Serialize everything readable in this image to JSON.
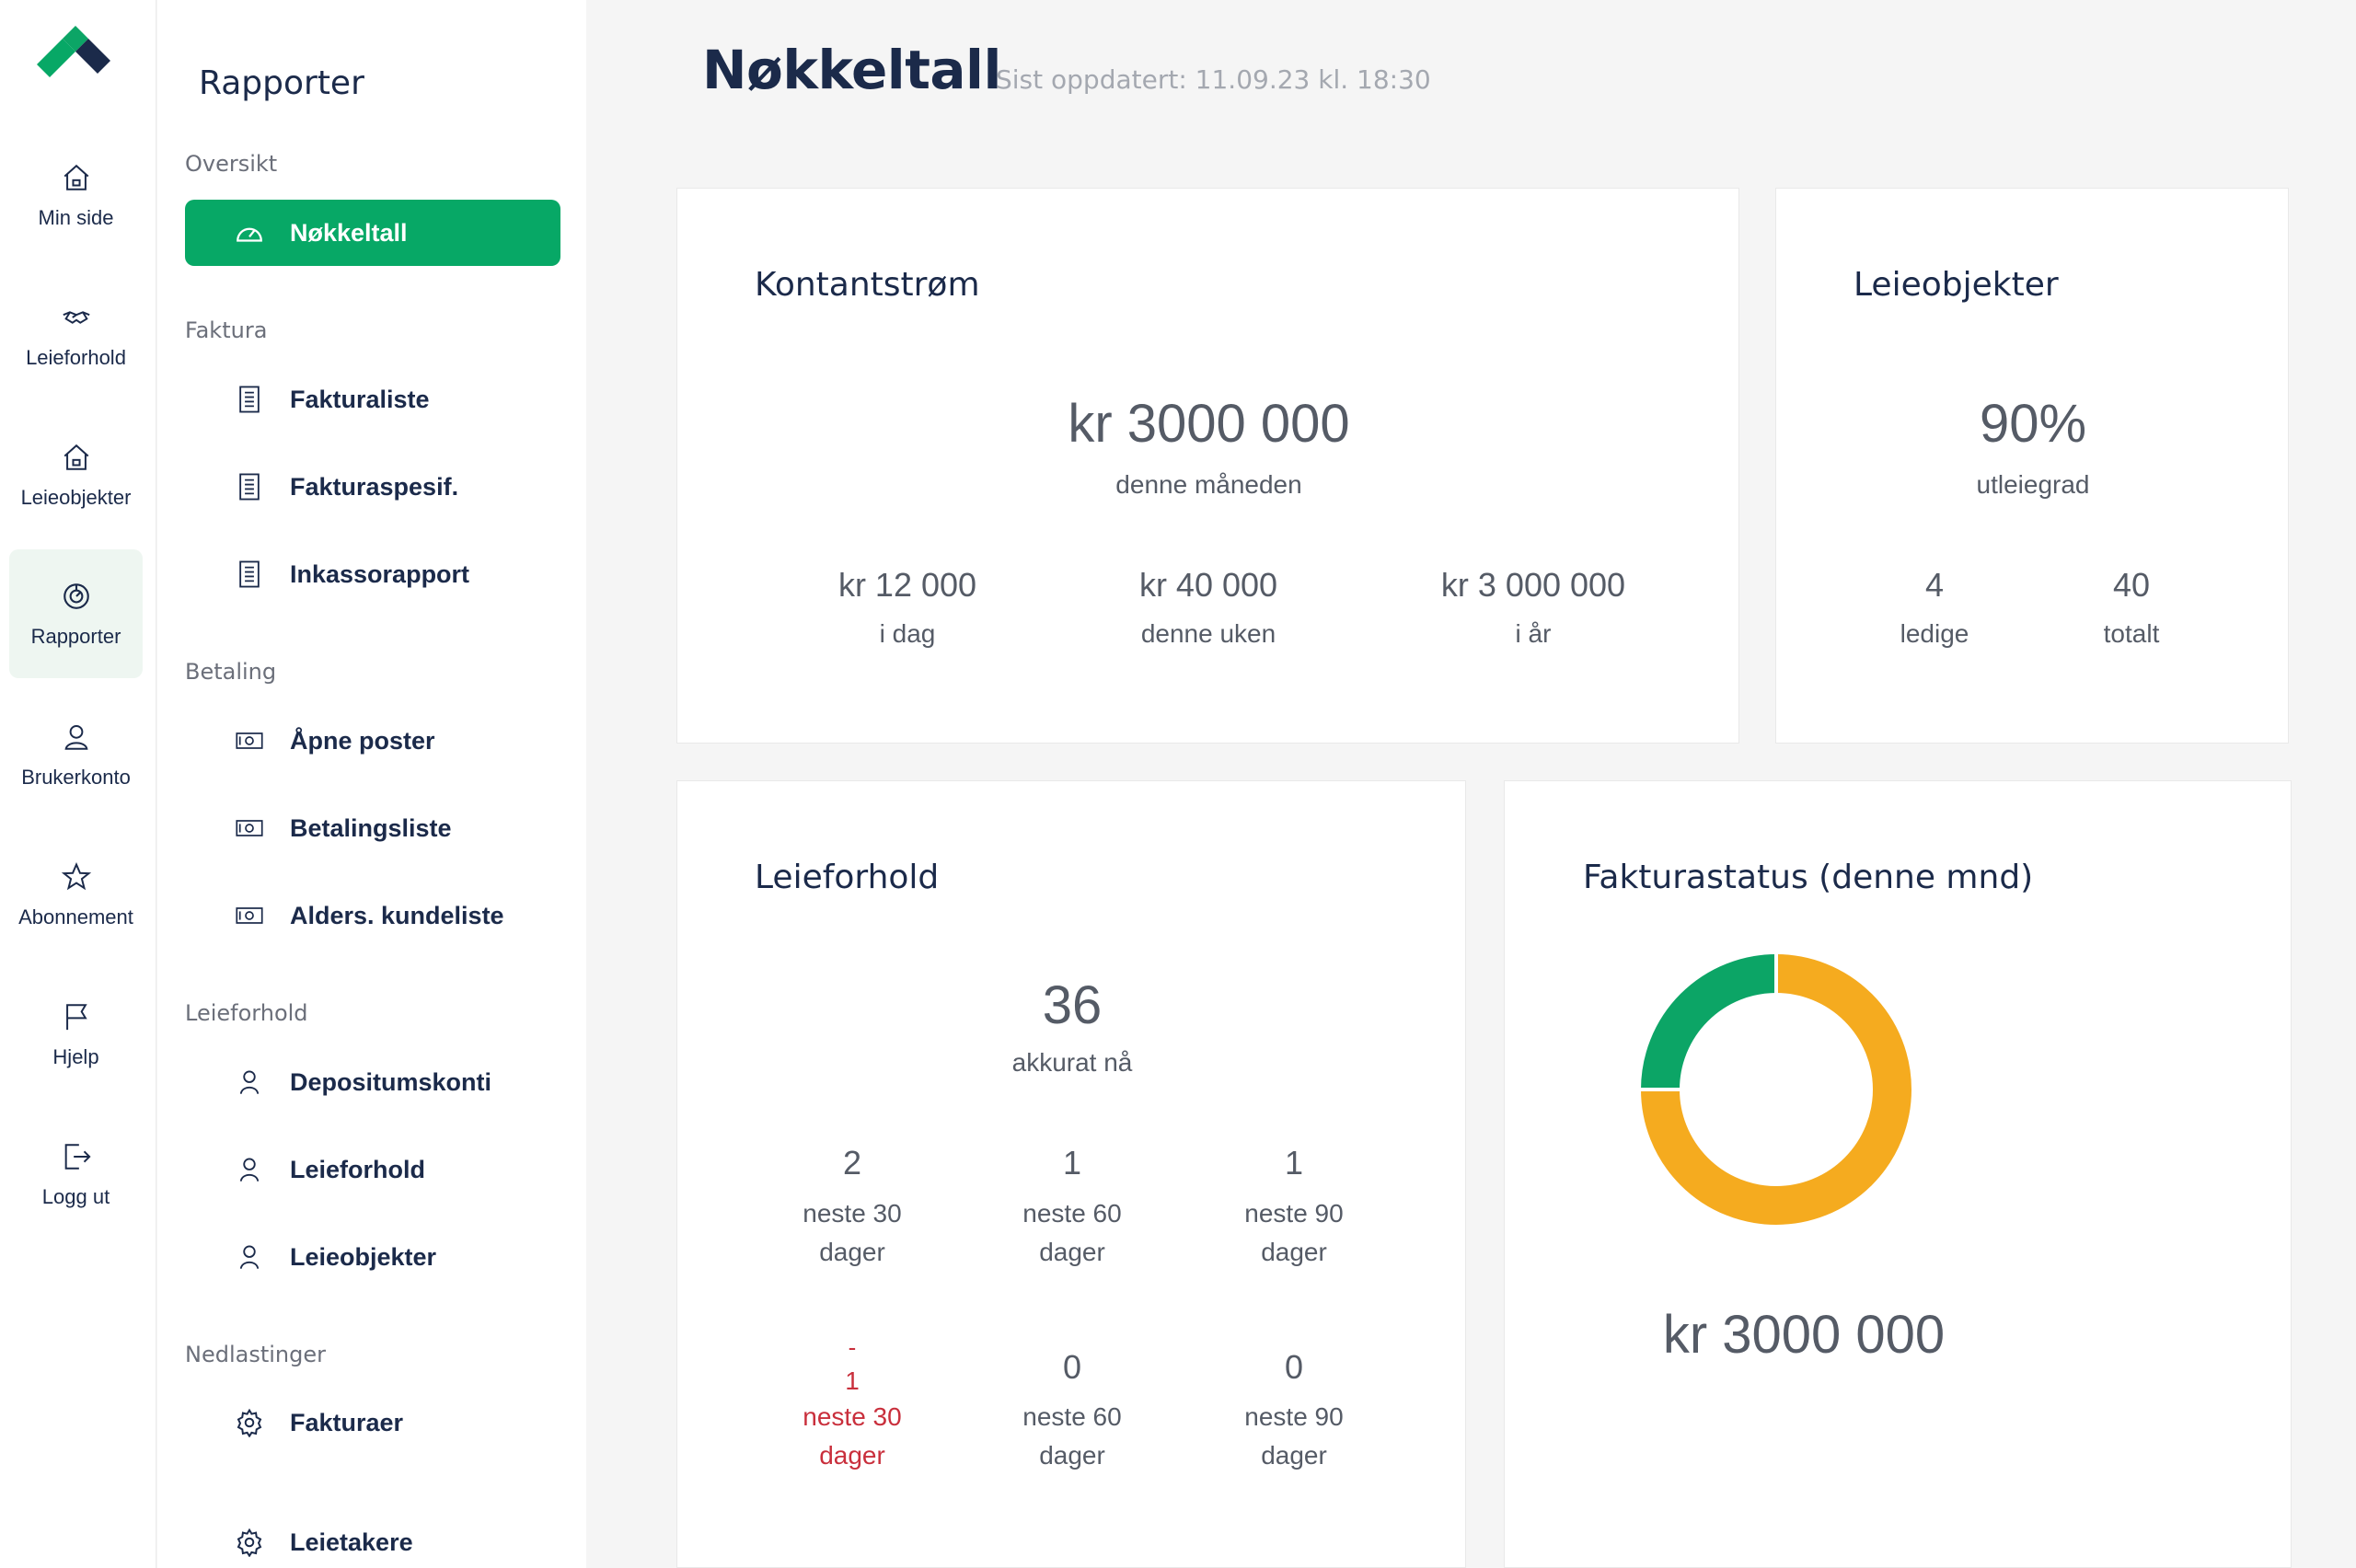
{
  "rail": {
    "items": [
      {
        "label": "Min side",
        "icon": "home-icon"
      },
      {
        "label": "Leieforhold",
        "icon": "handshake-icon"
      },
      {
        "label": "Leieobjekter",
        "icon": "house-icon"
      },
      {
        "label": "Rapporter",
        "icon": "report-icon"
      },
      {
        "label": "Brukerkonto",
        "icon": "user-icon"
      },
      {
        "label": "Abonnement",
        "icon": "star-icon"
      },
      {
        "label": "Hjelp",
        "icon": "flag-icon"
      },
      {
        "label": "Logg ut",
        "icon": "logout-icon"
      }
    ]
  },
  "sidebar": {
    "title": "Rapporter",
    "sections": [
      {
        "label": "Oversikt",
        "items": [
          {
            "label": "Nøkkeltall",
            "icon": "gauge-icon"
          }
        ]
      },
      {
        "label": "Faktura",
        "items": [
          {
            "label": "Fakturaliste",
            "icon": "receipt-icon"
          },
          {
            "label": "Fakturaspesif.",
            "icon": "receipt-icon"
          },
          {
            "label": "Inkassorapport",
            "icon": "receipt-icon"
          }
        ]
      },
      {
        "label": "Betaling",
        "items": [
          {
            "label": "Åpne poster",
            "icon": "banknote-icon"
          },
          {
            "label": "Betalingsliste",
            "icon": "banknote-icon"
          },
          {
            "label": "Alders. kundeliste",
            "icon": "banknote-icon"
          }
        ]
      },
      {
        "label": "Leieforhold",
        "items": [
          {
            "label": "Depositumskonti",
            "icon": "person-icon"
          },
          {
            "label": "Leieforhold",
            "icon": "person-icon"
          },
          {
            "label": "Leieobjekter",
            "icon": "person-icon"
          }
        ]
      },
      {
        "label": "Nedlastinger",
        "items": [
          {
            "label": "Fakturaer",
            "icon": "gear-icon"
          },
          {
            "label": "Leietakere",
            "icon": "gear-icon"
          }
        ]
      }
    ]
  },
  "header": {
    "title": "Nøkkeltall",
    "updated": "Sist oppdatert: 11.09.23 kl. 18:30"
  },
  "kontantstrom": {
    "title": "Kontantstrøm",
    "main_value": "kr 3000 000",
    "main_caption": "denne måneden",
    "stats": [
      {
        "value": "kr 12 000",
        "caption": "i dag"
      },
      {
        "value": "kr 40 000",
        "caption": "denne uken"
      },
      {
        "value": "kr 3 000 000",
        "caption": "i år"
      }
    ]
  },
  "leieobjekter": {
    "title": "Leieobjekter",
    "main_value": "90%",
    "main_caption": "utleiegrad",
    "stats": [
      {
        "value": "4",
        "caption": "ledige"
      },
      {
        "value": "40",
        "caption": "totalt"
      }
    ]
  },
  "leieforhold": {
    "title": "Leieforhold",
    "main_value": "36",
    "main_caption": "akkurat nå",
    "row1": [
      {
        "value": "2",
        "line1": "neste 30",
        "line2": "dager"
      },
      {
        "value": "1",
        "line1": "neste 60",
        "line2": "dager"
      },
      {
        "value": "1",
        "line1": "neste 90",
        "line2": "dager"
      }
    ],
    "row2": [
      {
        "minus": "-",
        "value": "1",
        "line1": "neste 30",
        "line2": "dager"
      },
      {
        "value": "0",
        "line1": "neste 60",
        "line2": "dager"
      },
      {
        "value": "0",
        "line1": "neste 90",
        "line2": "dager"
      }
    ]
  },
  "fakturastatus": {
    "title": "Fakturastatus (denne mnd)",
    "total": "kr 3000 000"
  },
  "chart_data": {
    "type": "pie",
    "title": "Fakturastatus (denne mnd)",
    "slices": [
      {
        "value": 75,
        "color": "#f5ab1f"
      },
      {
        "value": 25,
        "color": "#0ca566"
      }
    ]
  },
  "colors": {
    "accent": "#07a866",
    "navy": "#1b2a4a",
    "negative": "#c92f3c"
  }
}
